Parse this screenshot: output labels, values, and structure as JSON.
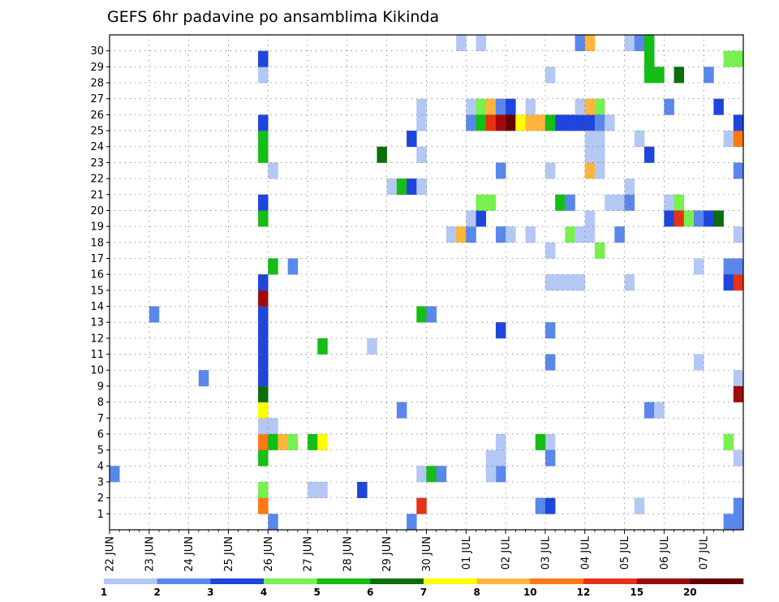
{
  "chart_data": {
    "type": "heatmap",
    "title": "GEFS 6hr padavine po ansamblima Kikinda",
    "xlabel": "",
    "ylabel": "",
    "y_ticks": [
      1,
      2,
      3,
      4,
      5,
      6,
      7,
      8,
      9,
      10,
      11,
      12,
      13,
      14,
      15,
      16,
      17,
      18,
      19,
      20,
      21,
      22,
      23,
      24,
      25,
      26,
      27,
      28,
      29,
      30
    ],
    "x_ticks": [
      "22 JUN",
      "23 JUN",
      "24 JUN",
      "25 JUN",
      "26 JUN",
      "27 JUN",
      "28 JUN",
      "29 JUN",
      "30 JUN",
      "01 JUL",
      "02 JUL",
      "03 JUL",
      "04 JUL",
      "05 JUL",
      "06 JUL",
      "07 JUL"
    ],
    "x_unit": "6-hour step starting 22 JUN 00Z (4 steps per day)",
    "grid": true,
    "colorbar": {
      "labels": [
        "1",
        "2",
        "3",
        "4",
        "5",
        "6",
        "7",
        "8",
        "10",
        "12",
        "15",
        "20"
      ],
      "colors": [
        "#b4c8f5",
        "#5a87eb",
        "#1e46dc",
        "#78f050",
        "#14be14",
        "#0a6e0a",
        "#ffff00",
        "#ffb43c",
        "#ff7814",
        "#e63214",
        "#a00a0a",
        "#640000"
      ]
    },
    "cells": [
      [
        0,
        3,
        1
      ],
      [
        4,
        13,
        1
      ],
      [
        9,
        9,
        1
      ],
      [
        15,
        1,
        8
      ],
      [
        15,
        2,
        3
      ],
      [
        15,
        4,
        4
      ],
      [
        15,
        5,
        8
      ],
      [
        15,
        6,
        0
      ],
      [
        15,
        7,
        6
      ],
      [
        15,
        8,
        5
      ],
      [
        15,
        9,
        2
      ],
      [
        15,
        10,
        2
      ],
      [
        15,
        11,
        2
      ],
      [
        15,
        12,
        2
      ],
      [
        15,
        13,
        2
      ],
      [
        15,
        14,
        10
      ],
      [
        15,
        15,
        2
      ],
      [
        15,
        19,
        4
      ],
      [
        15,
        20,
        2
      ],
      [
        15,
        23,
        4
      ],
      [
        15,
        24,
        4
      ],
      [
        15,
        25,
        2
      ],
      [
        15,
        28,
        0
      ],
      [
        15,
        29,
        2
      ],
      [
        16,
        0,
        1
      ],
      [
        16,
        6,
        0
      ],
      [
        16,
        16,
        4
      ],
      [
        16,
        22,
        0
      ],
      [
        16,
        5,
        4
      ],
      [
        17,
        5,
        7
      ],
      [
        18,
        5,
        3
      ],
      [
        18,
        16,
        1
      ],
      [
        20,
        2,
        0
      ],
      [
        21,
        2,
        0
      ],
      [
        21,
        11,
        4
      ],
      [
        20,
        5,
        4
      ],
      [
        21,
        5,
        6
      ],
      [
        26,
        11,
        0
      ],
      [
        25,
        2,
        2
      ],
      [
        27,
        23,
        5
      ],
      [
        28,
        21,
        0
      ],
      [
        29,
        21,
        4
      ],
      [
        29,
        7,
        1
      ],
      [
        30,
        21,
        2
      ],
      [
        30,
        24,
        2
      ],
      [
        31,
        21,
        0
      ],
      [
        30,
        0,
        1
      ],
      [
        31,
        1,
        9
      ],
      [
        31,
        13,
        4
      ],
      [
        32,
        13,
        1
      ],
      [
        31,
        3,
        0
      ],
      [
        32,
        3,
        4
      ],
      [
        33,
        3,
        1
      ],
      [
        31,
        23,
        0
      ],
      [
        31,
        25,
        0
      ],
      [
        31,
        26,
        0
      ],
      [
        34,
        18,
        0
      ],
      [
        35,
        18,
        7
      ],
      [
        36,
        18,
        1
      ],
      [
        35,
        30,
        0
      ],
      [
        37,
        30,
        0
      ],
      [
        36,
        19,
        0
      ],
      [
        37,
        19,
        2
      ],
      [
        36,
        25,
        1
      ],
      [
        36,
        26,
        0
      ],
      [
        37,
        26,
        3
      ],
      [
        37,
        25,
        4
      ],
      [
        38,
        26,
        7
      ],
      [
        38,
        25,
        9
      ],
      [
        39,
        26,
        1
      ],
      [
        39,
        25,
        10
      ],
      [
        40,
        26,
        2
      ],
      [
        40,
        25,
        11
      ],
      [
        41,
        25,
        6
      ],
      [
        42,
        25,
        7
      ],
      [
        43,
        25,
        7
      ],
      [
        44,
        25,
        4
      ],
      [
        37,
        20,
        3
      ],
      [
        38,
        20,
        3
      ],
      [
        39,
        12,
        2
      ],
      [
        39,
        3,
        1
      ],
      [
        38,
        3,
        0
      ],
      [
        39,
        18,
        1
      ],
      [
        38,
        4,
        0
      ],
      [
        39,
        4,
        0
      ],
      [
        39,
        5,
        0
      ],
      [
        39,
        22,
        1
      ],
      [
        40,
        18,
        0
      ],
      [
        42,
        26,
        0
      ],
      [
        42,
        18,
        0
      ],
      [
        43,
        1,
        1
      ],
      [
        44,
        1,
        2
      ],
      [
        44,
        5,
        0
      ],
      [
        43,
        5,
        4
      ],
      [
        44,
        4,
        1
      ],
      [
        44,
        10,
        1
      ],
      [
        44,
        12,
        1
      ],
      [
        44,
        15,
        0
      ],
      [
        45,
        15,
        0
      ],
      [
        46,
        15,
        0
      ],
      [
        47,
        15,
        0
      ],
      [
        44,
        17,
        0
      ],
      [
        44,
        22,
        0
      ],
      [
        44,
        28,
        0
      ],
      [
        45,
        20,
        4
      ],
      [
        46,
        20,
        1
      ],
      [
        45,
        25,
        2
      ],
      [
        46,
        25,
        2
      ],
      [
        47,
        25,
        2
      ],
      [
        48,
        25,
        2
      ],
      [
        46,
        18,
        3
      ],
      [
        47,
        30,
        1
      ],
      [
        48,
        30,
        7
      ],
      [
        47,
        26,
        0
      ],
      [
        48,
        26,
        7
      ],
      [
        49,
        26,
        3
      ],
      [
        48,
        22,
        7
      ],
      [
        49,
        22,
        0
      ],
      [
        48,
        24,
        0
      ],
      [
        49,
        24,
        0
      ],
      [
        48,
        23,
        0
      ],
      [
        49,
        23,
        0
      ],
      [
        47,
        18,
        0
      ],
      [
        48,
        18,
        0
      ],
      [
        49,
        17,
        3
      ],
      [
        48,
        19,
        0
      ],
      [
        49,
        25,
        1
      ],
      [
        50,
        25,
        0
      ],
      [
        50,
        20,
        0
      ],
      [
        51,
        20,
        0
      ],
      [
        52,
        20,
        1
      ],
      [
        52,
        21,
        0
      ],
      [
        52,
        15,
        0
      ],
      [
        51,
        18,
        1
      ],
      [
        52,
        30,
        0
      ],
      [
        53,
        30,
        1
      ],
      [
        54,
        30,
        4
      ],
      [
        54,
        29,
        4
      ],
      [
        54,
        28,
        4
      ],
      [
        55,
        28,
        4
      ],
      [
        54,
        7,
        1
      ],
      [
        55,
        7,
        0
      ],
      [
        53,
        1,
        0
      ],
      [
        53,
        24,
        0
      ],
      [
        54,
        23,
        2
      ],
      [
        56,
        26,
        1
      ],
      [
        57,
        28,
        5
      ],
      [
        56,
        20,
        0
      ],
      [
        57,
        20,
        3
      ],
      [
        56,
        19,
        2
      ],
      [
        57,
        19,
        9
      ],
      [
        58,
        19,
        3
      ],
      [
        59,
        10,
        0
      ],
      [
        59,
        16,
        0
      ],
      [
        59,
        19,
        1
      ],
      [
        60,
        28,
        1
      ],
      [
        60,
        19,
        2
      ],
      [
        61,
        26,
        2
      ],
      [
        61,
        19,
        5
      ],
      [
        62,
        29,
        3
      ],
      [
        63,
        29,
        3
      ],
      [
        62,
        16,
        1
      ],
      [
        62,
        15,
        2
      ],
      [
        62,
        5,
        3
      ],
      [
        63,
        15,
        9
      ],
      [
        63,
        16,
        1
      ],
      [
        62,
        24,
        0
      ],
      [
        63,
        24,
        8
      ],
      [
        63,
        25,
        2
      ],
      [
        63,
        22,
        1
      ],
      [
        63,
        18,
        0
      ],
      [
        63,
        9,
        0
      ],
      [
        63,
        8,
        10
      ],
      [
        63,
        4,
        0
      ],
      [
        62,
        0,
        1
      ],
      [
        63,
        0,
        1
      ],
      [
        63,
        1,
        1
      ]
    ]
  }
}
